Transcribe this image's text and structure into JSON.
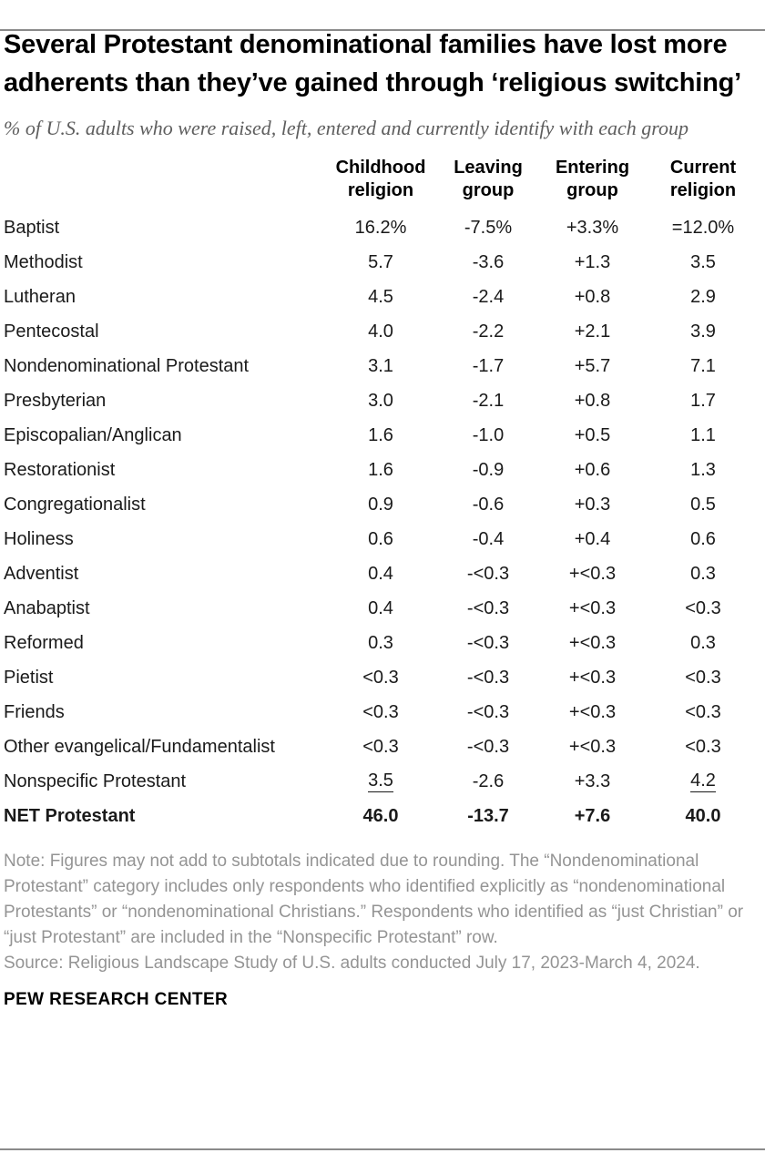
{
  "chart_data": {
    "type": "table",
    "title": "Several Protestant denominational families have lost more adherents than they’ve gained through ‘religious switching’",
    "subtitle": "% of U.S. adults who were raised, left, entered and currently identify with each group",
    "columns": [
      "Childhood\nreligion",
      "Leaving\ngroup",
      "Entering\ngroup",
      "Current\nreligion"
    ],
    "rows": [
      {
        "label": "Baptist",
        "values": [
          "16.2%",
          "-7.5%",
          "+3.3%",
          "=12.0%"
        ]
      },
      {
        "label": "Methodist",
        "values": [
          "5.7",
          "-3.6",
          "+1.3",
          "3.5"
        ]
      },
      {
        "label": "Lutheran",
        "values": [
          "4.5",
          "-2.4",
          "+0.8",
          "2.9"
        ]
      },
      {
        "label": "Pentecostal",
        "values": [
          "4.0",
          "-2.2",
          "+2.1",
          "3.9"
        ]
      },
      {
        "label": "Nondenominational Protestant",
        "values": [
          "3.1",
          "-1.7",
          "+5.7",
          "7.1"
        ]
      },
      {
        "label": "Presbyterian",
        "values": [
          "3.0",
          "-2.1",
          "+0.8",
          "1.7"
        ]
      },
      {
        "label": "Episcopalian/Anglican",
        "values": [
          "1.6",
          "-1.0",
          "+0.5",
          "1.1"
        ]
      },
      {
        "label": "Restorationist",
        "values": [
          "1.6",
          "-0.9",
          "+0.6",
          "1.3"
        ]
      },
      {
        "label": "Congregationalist",
        "values": [
          "0.9",
          "-0.6",
          "+0.3",
          "0.5"
        ]
      },
      {
        "label": "Holiness",
        "values": [
          "0.6",
          "-0.4",
          "+0.4",
          "0.6"
        ]
      },
      {
        "label": "Adventist",
        "values": [
          "0.4",
          "-<0.3",
          "+<0.3",
          "0.3"
        ]
      },
      {
        "label": "Anabaptist",
        "values": [
          "0.4",
          "-<0.3",
          "+<0.3",
          "<0.3"
        ]
      },
      {
        "label": "Reformed",
        "values": [
          "0.3",
          "-<0.3",
          "+<0.3",
          "0.3"
        ]
      },
      {
        "label": "Pietist",
        "values": [
          "<0.3",
          "-<0.3",
          "+<0.3",
          "<0.3"
        ]
      },
      {
        "label": "Friends",
        "values": [
          "<0.3",
          "-<0.3",
          "+<0.3",
          "<0.3"
        ]
      },
      {
        "label": "Other evangelical/Fundamentalist",
        "values": [
          "<0.3",
          "-<0.3",
          "+<0.3",
          "<0.3"
        ]
      },
      {
        "label": "Nonspecific Protestant",
        "values": [
          "3.5",
          "-2.6",
          "+3.3",
          "4.2"
        ],
        "underline": [
          0,
          3
        ]
      },
      {
        "label": "NET Protestant",
        "values": [
          "46.0",
          "-13.7",
          "+7.6",
          "40.0"
        ],
        "net": true
      }
    ]
  },
  "footer": {
    "note": "Note: Figures may not add to subtotals indicated due to rounding. The “Nondenominational Protestant” category includes only respondents who identified explicitly as “nondenominational Protestants” or “nondenominational Christians.” Respondents who identified as “just Christian” or “just Protestant” are included in the “Nonspecific Protestant” row.",
    "source": "Source: Religious Landscape Study of U.S. adults conducted July 17, 2023-March 4, 2024.",
    "brand": "PEW RESEARCH CENTER"
  },
  "colors": {
    "title_text": "#000000",
    "body_text": "#1a1a1a",
    "subtitle_text": "#5e5e5e",
    "note_text": "#949494",
    "rule": "#8a8a8a"
  }
}
